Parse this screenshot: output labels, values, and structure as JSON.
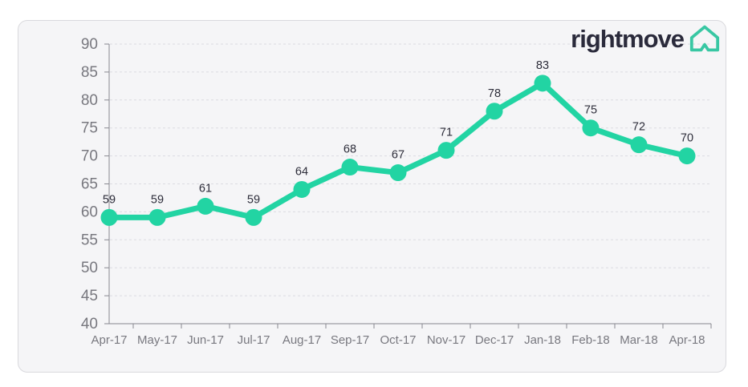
{
  "page": {
    "background_color": "#ffffff"
  },
  "card": {
    "background_color": "#f5f5f7",
    "border_color": "#d9d9dd"
  },
  "logo": {
    "text": "rightmove",
    "text_color": "#2a2a3b",
    "icon": "rightmove-house-icon",
    "icon_color": "#38c7a3"
  },
  "chart_data": {
    "type": "line",
    "title": "",
    "xlabel": "",
    "ylabel": "",
    "categories": [
      "Apr-17",
      "May-17",
      "Jun-17",
      "Jul-17",
      "Aug-17",
      "Sep-17",
      "Oct-17",
      "Nov-17",
      "Dec-17",
      "Jan-18",
      "Feb-18",
      "Mar-18",
      "Apr-18"
    ],
    "values": [
      59,
      59,
      61,
      59,
      64,
      68,
      67,
      71,
      78,
      83,
      75,
      72,
      70
    ],
    "data_labels_shown": true,
    "ylim": [
      40,
      90
    ],
    "yticks": [
      40,
      45,
      50,
      55,
      60,
      65,
      70,
      75,
      80,
      85,
      90
    ],
    "grid": "horizontal-dashed",
    "legend": "none",
    "series_color": "#22d4a3",
    "marker_color": "#22d4a3",
    "grid_color": "#dbdbe1",
    "axis_color": "#87878f",
    "axis_label_color": "#78787f",
    "data_label_color": "#2d2d3a"
  }
}
